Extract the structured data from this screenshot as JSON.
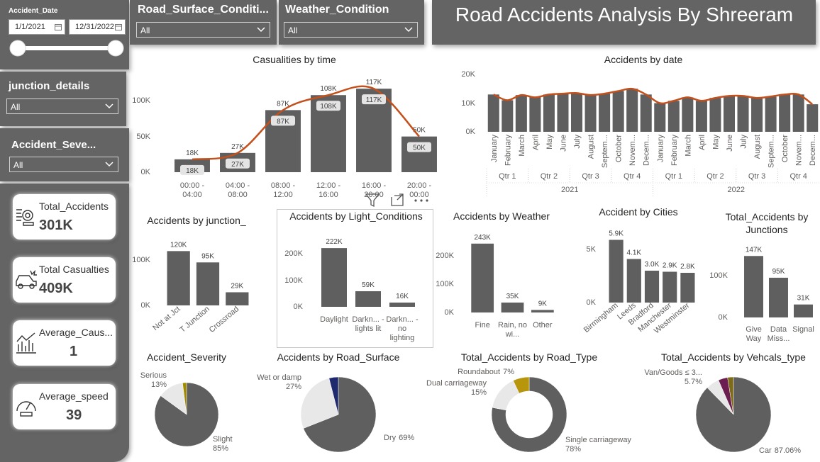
{
  "header": {
    "title": "Road Accidents Analysis By Shreeram"
  },
  "filters": {
    "date": {
      "label": "Accident_Date",
      "start": "1/1/2021",
      "end": "12/31/2022"
    },
    "dropdowns": [
      {
        "label": "Road_Surface_Conditi...",
        "value": "All"
      },
      {
        "label": "Weather_Condition",
        "value": "All"
      },
      {
        "label": "junction_details",
        "value": "All"
      },
      {
        "label": "Accident_Seve...",
        "value": "All"
      }
    ]
  },
  "cards": [
    {
      "label": "Total_Accidents",
      "value": "301K"
    },
    {
      "label": "Total Casualties",
      "value": "409K"
    },
    {
      "label": "Average_Caus...",
      "value": "1"
    },
    {
      "label": "Average_speed",
      "value": "39"
    }
  ],
  "chart_data": [
    {
      "type": "bar",
      "title": "Casualities by time",
      "categories": [
        "00:00 - 04:00",
        "04:00 - 08:00",
        "08:00 - 12:00",
        "12:00 - 16:00",
        "16:00 - 20:00",
        "20:00 - 00:00"
      ],
      "series": [
        {
          "type": "bar",
          "color": "#5f5f5f",
          "values": [
            18000,
            27000,
            87000,
            108000,
            117000,
            50000
          ],
          "value_labels": [
            "18K",
            "27K",
            "87K",
            "108K",
            "117K",
            "50K"
          ]
        },
        {
          "type": "line",
          "color": "#c4501c",
          "values": [
            18000,
            27000,
            87000,
            108000,
            117000,
            50000
          ],
          "value_labels": [
            "18K",
            "27K",
            "87K",
            "108K",
            "117K",
            "50K"
          ]
        }
      ],
      "ylim": [
        0,
        140000
      ],
      "yticks": [
        {
          "value": 0,
          "label": "0K"
        },
        {
          "value": 50000,
          "label": "50K"
        },
        {
          "value": 100000,
          "label": "100K"
        }
      ]
    },
    {
      "type": "bar",
      "title": "Accidents by date",
      "categories": [
        "January",
        "February",
        "March",
        "April",
        "May",
        "June",
        "July",
        "August",
        "Septem...",
        "October",
        "Novem...",
        "Decem...",
        "January",
        "February",
        "March",
        "April",
        "May",
        "June",
        "July",
        "August",
        "Septem...",
        "October",
        "Novem...",
        "Decem..."
      ],
      "quarters": [
        "Qtr 1",
        "Qtr 2",
        "Qtr 3",
        "Qtr 4",
        "Qtr 1",
        "Qtr 2",
        "Qtr 3",
        "Qtr 4"
      ],
      "years": [
        "2021",
        "2022"
      ],
      "series": [
        {
          "type": "bar",
          "color": "#5f5f5f",
          "values": [
            13000,
            11000,
            12800,
            12000,
            13000,
            13300,
            13500,
            12800,
            13300,
            14200,
            15000,
            13000,
            10000,
            10800,
            12000,
            10800,
            11800,
            12500,
            12500,
            11800,
            12300,
            13000,
            13000,
            9600
          ]
        },
        {
          "type": "line",
          "color": "#c4501c",
          "values": [
            13000,
            11000,
            12800,
            12000,
            13000,
            13300,
            13500,
            12800,
            13300,
            14200,
            15000,
            13000,
            10000,
            10800,
            12000,
            10800,
            11800,
            12500,
            12500,
            11800,
            12300,
            13000,
            13000,
            9600
          ]
        }
      ],
      "ylim": [
        0,
        20000
      ],
      "yticks": [
        {
          "value": 0,
          "label": "0K"
        },
        {
          "value": 10000,
          "label": "10K"
        },
        {
          "value": 20000,
          "label": "20K"
        }
      ]
    },
    {
      "type": "bar",
      "title": "Accidents by junction_",
      "categories": [
        "Not at Jct",
        "T Junction",
        "Crossroad"
      ],
      "series": [
        {
          "type": "bar",
          "color": "#5f5f5f",
          "values": [
            120000,
            95000,
            29000
          ],
          "value_labels": [
            "120K",
            "95K",
            "29K"
          ]
        }
      ],
      "ylim": [
        0,
        155000
      ],
      "yticks": [
        {
          "value": 0,
          "label": "0K"
        },
        {
          "value": 100000,
          "label": "100K"
        }
      ]
    },
    {
      "type": "bar",
      "title": "Accidents by Light_Conditions",
      "categories": [
        "Daylight",
        "Darkn... - lights lit",
        "Darkn... - no lighting"
      ],
      "series": [
        {
          "type": "bar",
          "color": "#5f5f5f",
          "values": [
            222000,
            59000,
            16000
          ],
          "value_labels": [
            "222K",
            "59K",
            "16K"
          ]
        }
      ],
      "ylim": [
        0,
        300000
      ],
      "yticks": [
        {
          "value": 0,
          "label": "0K"
        },
        {
          "value": 100000,
          "label": "100K"
        },
        {
          "value": 200000,
          "label": "200K"
        }
      ]
    },
    {
      "type": "bar",
      "title": "Accidents by Weather",
      "categories": [
        "Fine",
        "Rain, no wi...",
        "Other"
      ],
      "series": [
        {
          "type": "bar",
          "color": "#5f5f5f",
          "values": [
            243000,
            35000,
            9000
          ],
          "value_labels": [
            "243K",
            "35K",
            "9K"
          ]
        }
      ],
      "ylim": [
        0,
        300000
      ],
      "yticks": [
        {
          "value": 0,
          "label": "0K"
        },
        {
          "value": 100000,
          "label": "100K"
        },
        {
          "value": 200000,
          "label": "200K"
        }
      ]
    },
    {
      "type": "bar",
      "title": "Accident by Cities",
      "categories": [
        "Birmingham",
        "Leeds",
        "Bradford",
        "Manchester",
        "Westminster"
      ],
      "series": [
        {
          "type": "bar",
          "color": "#5f5f5f",
          "values": [
            5900,
            4100,
            3000,
            2900,
            2800
          ],
          "value_labels": [
            "5.9K",
            "4.1K",
            "3.0K",
            "2.9K",
            "2.8K"
          ]
        }
      ],
      "ylim": [
        0,
        7000
      ],
      "yticks": [
        {
          "value": 0,
          "label": "0K"
        },
        {
          "value": 5000,
          "label": "5K"
        }
      ]
    },
    {
      "type": "bar",
      "title": "Total_Accidents by Junctions",
      "categories": [
        "Give Way",
        "Data Miss...",
        "Signal"
      ],
      "series": [
        {
          "type": "bar",
          "color": "#5f5f5f",
          "values": [
            147000,
            95000,
            31000
          ],
          "value_labels": [
            "147K",
            "95K",
            "31K"
          ]
        }
      ],
      "ylim": [
        0,
        200000
      ],
      "yticks": [
        {
          "value": 0,
          "label": "0K"
        },
        {
          "value": 100000,
          "label": "100K"
        }
      ]
    },
    {
      "type": "pie",
      "title": "Accident_Severity",
      "categories": [
        "Slight",
        "Serious",
        null
      ],
      "values": [
        85,
        13,
        2
      ],
      "value_labels": [
        "85%",
        "13%",
        null
      ],
      "colors": [
        "#5f5f5f",
        "#e8e8e8",
        "#a08a00"
      ]
    },
    {
      "type": "pie",
      "title": "Accidents by Road_Surface",
      "categories": [
        "Dry",
        "Wet or damp",
        null
      ],
      "values": [
        69,
        27,
        4
      ],
      "value_labels": [
        "69%",
        "27%",
        null
      ],
      "colors": [
        "#5f5f5f",
        "#e8e8e8",
        "#1f2a6e"
      ]
    },
    {
      "type": "donut",
      "title": "Total_Accidents by Road_Type",
      "categories": [
        "Single carriageway",
        "Dual carriageway",
        "Roundabout"
      ],
      "values": [
        78,
        15,
        7
      ],
      "value_labels": [
        "78%",
        "15%",
        "7%"
      ],
      "colors": [
        "#5f5f5f",
        "#e8e8e8",
        "#b8960c"
      ]
    },
    {
      "type": "pie",
      "title": "Total_Accidents by Vehcals_type",
      "categories": [
        "Car",
        "Van/Goods ≤ 3...",
        null,
        null
      ],
      "values": [
        87.06,
        5.7,
        4,
        2.5
      ],
      "value_labels": [
        "87.06%",
        "5.7%",
        null,
        null
      ],
      "colors": [
        "#5f5f5f",
        "#e8e8e8",
        "#6b1e4f",
        "#7d6b1a"
      ]
    }
  ]
}
